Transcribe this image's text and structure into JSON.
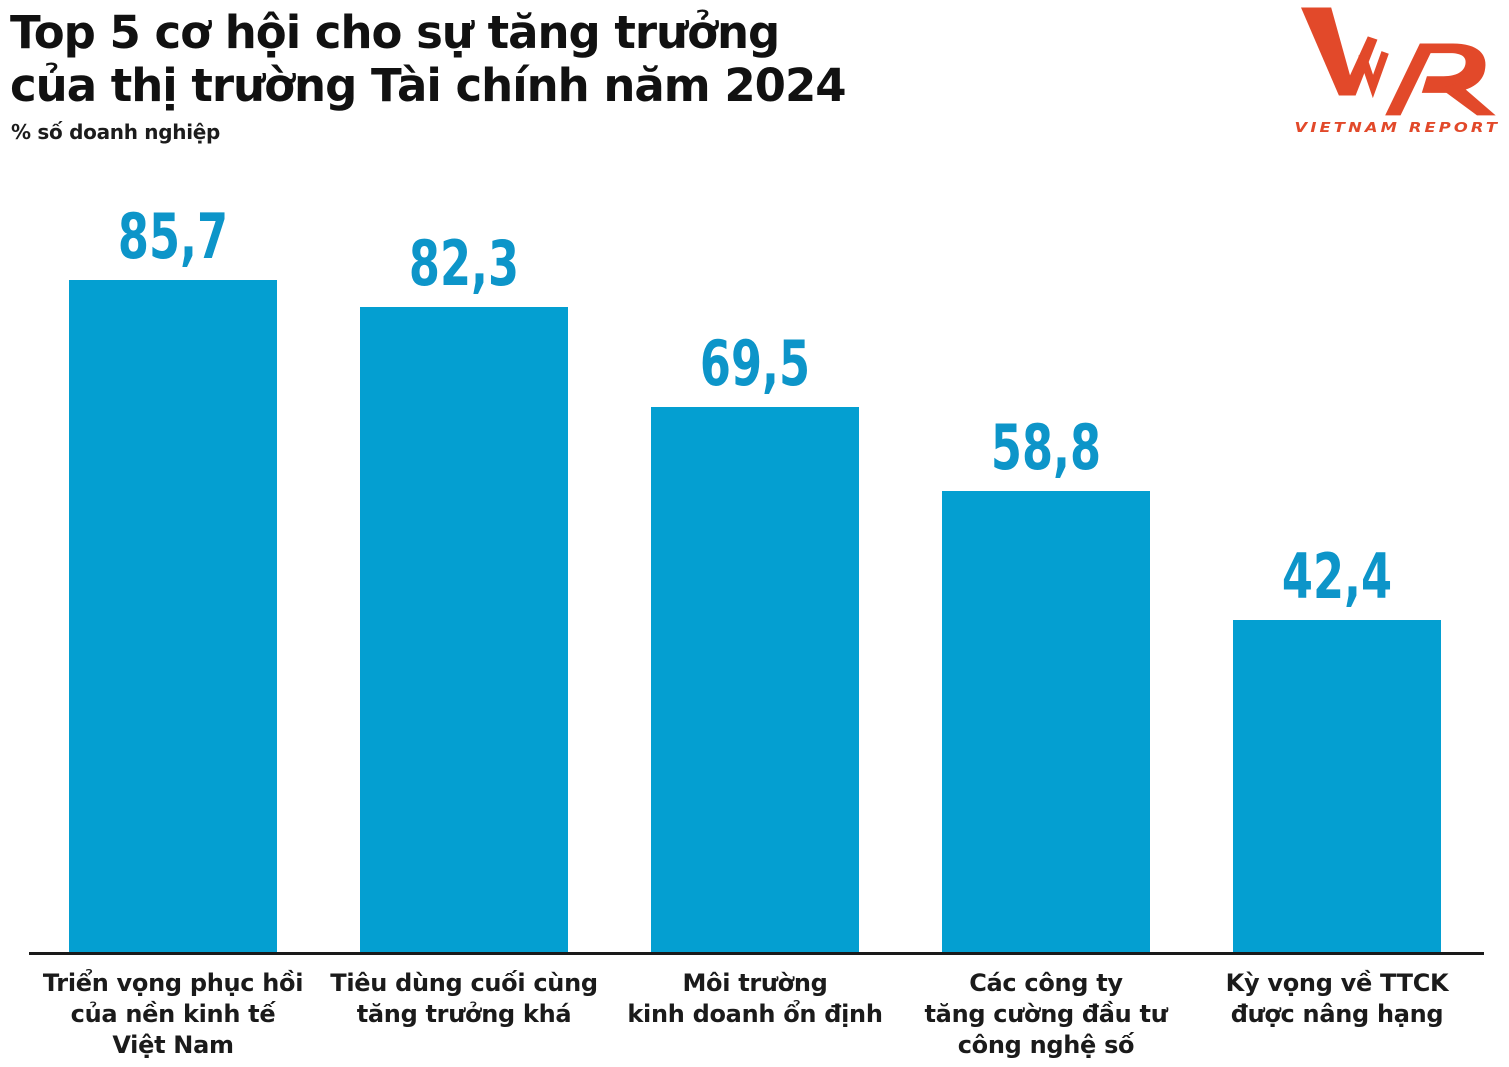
{
  "title": {
    "line1": "Top 5 cơ hội cho sự tăng trưởng",
    "line2": "của thị trường Tài chính năm 2024"
  },
  "subtitle": "% số doanh nghiệp",
  "logo": {
    "mark": "VNR",
    "wordmark": "VIETNAM REPORT",
    "color": "#E2492A"
  },
  "chart_data": {
    "type": "bar",
    "title": "Top 5 cơ hội cho sự tăng trưởng của thị trường Tài chính năm 2024",
    "ylabel": "% số doanh nghiệp",
    "xlabel": "",
    "ylim": [
      0,
      100
    ],
    "grid": false,
    "legend": false,
    "bar_color": "#049FD1",
    "value_label_color": "#0D95C9",
    "categories": [
      [
        "Triển vọng phục hồi",
        "của nền kinh tế",
        "Việt Nam"
      ],
      [
        "Tiêu dùng cuối cùng",
        "tăng trưởng khá"
      ],
      [
        "Môi trường",
        "kinh doanh ổn định"
      ],
      [
        "Các công ty",
        "tăng cường đầu tư",
        "công nghệ số"
      ],
      [
        "Kỳ vọng về TTCK",
        "được nâng hạng"
      ]
    ],
    "values": [
      85.7,
      82.3,
      69.5,
      58.8,
      42.4
    ],
    "value_labels": [
      "85,7",
      "82,3",
      "69,5",
      "58,8",
      "42,4"
    ]
  }
}
